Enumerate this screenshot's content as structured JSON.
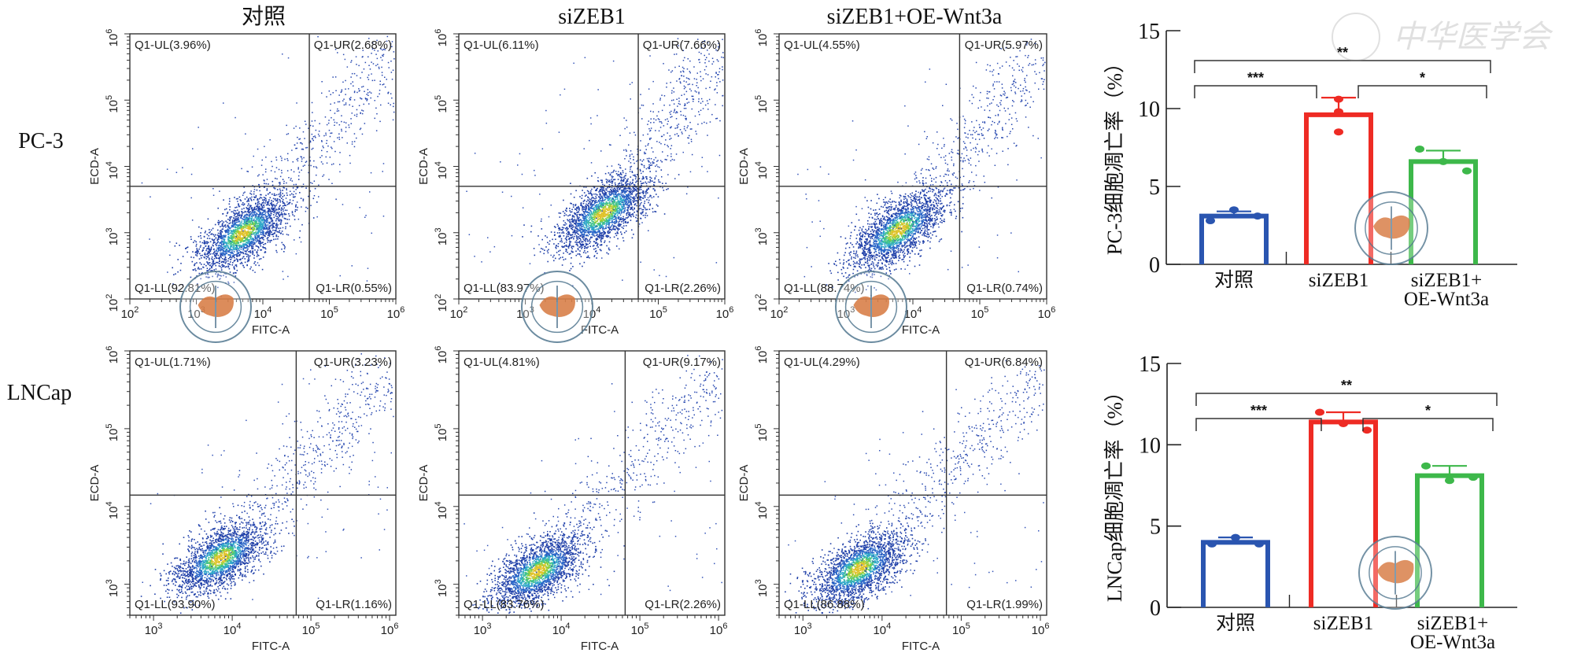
{
  "figure": {
    "row_labels": [
      "PC-3",
      "LNCap"
    ],
    "column_titles": [
      "对照",
      "siZEB1",
      "siZEB1+OE-Wnt3a"
    ],
    "watermark_text": "中华医学会"
  },
  "chart_data": [
    {
      "type": "scatter",
      "subtype": "flow-cytometry-quadrant",
      "row": "PC-3",
      "column": "对照",
      "xlabel": "FITC-A",
      "ylabel": "ECD-A",
      "xscale": "log",
      "yscale": "log",
      "xlim": [
        100,
        1000000
      ],
      "ylim": [
        100,
        1000000
      ],
      "xticks": [
        "10^2",
        "10^3",
        "10^4",
        "10^5",
        "10^6"
      ],
      "yticks": [
        "10^2",
        "10^3",
        "10^4",
        "10^5",
        "10^6"
      ],
      "gate": {
        "x": 50000,
        "y": 5000
      },
      "quadrants": {
        "UL": "Q1-UL(3.96%)",
        "UR": "Q1-UR(2.68%)",
        "LL": "Q1-LL(92.81%)",
        "LR": "Q1-LR(0.55%)"
      },
      "cluster_center": {
        "x": 5000,
        "y": 1000
      }
    },
    {
      "type": "scatter",
      "subtype": "flow-cytometry-quadrant",
      "row": "PC-3",
      "column": "siZEB1",
      "xlabel": "FITC-A",
      "ylabel": "ECD-A",
      "xscale": "log",
      "yscale": "log",
      "xlim": [
        100,
        1000000
      ],
      "ylim": [
        100,
        1000000
      ],
      "xticks": [
        "10^2",
        "10^3",
        "10^4",
        "10^5",
        "10^6"
      ],
      "yticks": [
        "10^2",
        "10^3",
        "10^4",
        "10^5",
        "10^6"
      ],
      "gate": {
        "x": 50000,
        "y": 5000
      },
      "quadrants": {
        "UL": "Q1-UL(6.11%)",
        "UR": "Q1-UR(7.66%)",
        "LL": "Q1-LL(83.97%)",
        "LR": "Q1-LR(2.26%)"
      },
      "cluster_center": {
        "x": 15000,
        "y": 2000
      }
    },
    {
      "type": "scatter",
      "subtype": "flow-cytometry-quadrant",
      "row": "PC-3",
      "column": "siZEB1+OE-Wnt3a",
      "xlabel": "FITC-A",
      "ylabel": "ECD-A",
      "xscale": "log",
      "yscale": "log",
      "xlim": [
        100,
        1000000
      ],
      "ylim": [
        100,
        1000000
      ],
      "xticks": [
        "10^2",
        "10^3",
        "10^4",
        "10^5",
        "10^6"
      ],
      "yticks": [
        "10^2",
        "10^3",
        "10^4",
        "10^5",
        "10^6"
      ],
      "gate": {
        "x": 50000,
        "y": 5000
      },
      "quadrants": {
        "UL": "Q1-UL(4.55%)",
        "UR": "Q1-UR(5.97%)",
        "LL": "Q1-LL(88.74%)",
        "LR": "Q1-LR(0.74%)"
      },
      "cluster_center": {
        "x": 6000,
        "y": 1100
      }
    },
    {
      "type": "scatter",
      "subtype": "flow-cytometry-quadrant",
      "row": "LNCap",
      "column": "对照",
      "xlabel": "FITC-A",
      "ylabel": "ECD-A",
      "xscale": "log",
      "yscale": "log",
      "xlim": [
        500,
        1200000
      ],
      "ylim": [
        400,
        1000000
      ],
      "xticks": [
        "10^3",
        "10^4",
        "10^5",
        "10^6"
      ],
      "yticks": [
        "10^3",
        "10^4",
        "10^5",
        "10^6"
      ],
      "gate": {
        "x": 65000,
        "y": 14000
      },
      "quadrants": {
        "UL": "Q1-UL(1.71%)",
        "UR": "Q1-UR(3.23%)",
        "LL": "Q1-LL(93.90%)",
        "LR": "Q1-LR(1.16%)"
      },
      "cluster_center": {
        "x": 7000,
        "y": 2200
      }
    },
    {
      "type": "scatter",
      "subtype": "flow-cytometry-quadrant",
      "row": "LNCap",
      "column": "siZEB1",
      "xlabel": "FITC-A",
      "ylabel": "ECD-A",
      "xscale": "log",
      "yscale": "log",
      "xlim": [
        500,
        1200000
      ],
      "ylim": [
        400,
        1000000
      ],
      "xticks": [
        "10^3",
        "10^4",
        "10^5",
        "10^6"
      ],
      "yticks": [
        "10^3",
        "10^4",
        "10^5",
        "10^6"
      ],
      "gate": {
        "x": 65000,
        "y": 14000
      },
      "quadrants": {
        "UL": "Q1-UL(4.81%)",
        "UR": "Q1-UR(9.17%)",
        "LL": "Q1-LL(83.76%)",
        "LR": "Q1-LR(2.26%)"
      },
      "cluster_center": {
        "x": 5000,
        "y": 1500
      }
    },
    {
      "type": "scatter",
      "subtype": "flow-cytometry-quadrant",
      "row": "LNCap",
      "column": "siZEB1+OE-Wnt3a",
      "xlabel": "FITC-A",
      "ylabel": "ECD-A",
      "xscale": "log",
      "yscale": "log",
      "xlim": [
        500,
        1200000
      ],
      "ylim": [
        400,
        1000000
      ],
      "xticks": [
        "10^3",
        "10^4",
        "10^5",
        "10^6"
      ],
      "yticks": [
        "10^3",
        "10^4",
        "10^5",
        "10^6"
      ],
      "gate": {
        "x": 65000,
        "y": 14000
      },
      "quadrants": {
        "UL": "Q1-UL(4.29%)",
        "UR": "Q1-UR(6.84%)",
        "LL": "Q1-LL(86.88%)",
        "LR": "Q1-LR(1.99%)"
      },
      "cluster_center": {
        "x": 5000,
        "y": 1600
      }
    },
    {
      "type": "bar",
      "title": "",
      "ylabel": "PC-3细胞凋亡率（%）",
      "xlabel": "",
      "categories": [
        "对照",
        "siZEB1",
        "siZEB1+\nOE-Wnt3a"
      ],
      "category_lines": [
        [
          "对照"
        ],
        [
          "siZEB1"
        ],
        [
          "siZEB1+",
          "OE-Wnt3a"
        ]
      ],
      "values": [
        3.1,
        9.6,
        6.6
      ],
      "error_upper": [
        3.4,
        10.7,
        7.3
      ],
      "points": [
        [
          2.8,
          3.5,
          3.1
        ],
        [
          10.6,
          9.8,
          8.5
        ],
        [
          7.4,
          6.6,
          6.0
        ]
      ],
      "colors": [
        "#2a55b0",
        "#ee2b24",
        "#3db84a"
      ],
      "ylim": [
        0,
        15
      ],
      "yticks": [
        0,
        5,
        10,
        15
      ],
      "significance": [
        {
          "from": 0,
          "to": 2,
          "label": "**",
          "level": 2
        },
        {
          "from": 0,
          "to": 1,
          "label": "***",
          "level": 1
        },
        {
          "from": 1,
          "to": 2,
          "label": "*",
          "level": 1
        }
      ]
    },
    {
      "type": "bar",
      "title": "",
      "ylabel": "LNCap细胞凋亡率（%）",
      "xlabel": "",
      "categories": [
        "对照",
        "siZEB1",
        "siZEB1+\nOE-Wnt3a"
      ],
      "category_lines": [
        [
          "对照"
        ],
        [
          "siZEB1"
        ],
        [
          "siZEB1+",
          "OE-Wnt3a"
        ]
      ],
      "values": [
        4.0,
        11.4,
        8.1
      ],
      "error_upper": [
        4.3,
        12.0,
        8.7
      ],
      "points": [
        [
          3.9,
          4.3,
          3.9
        ],
        [
          12.0,
          11.3,
          10.9
        ],
        [
          8.7,
          7.8,
          8.0
        ]
      ],
      "colors": [
        "#2a55b0",
        "#ee2b24",
        "#3db84a"
      ],
      "ylim": [
        0,
        15
      ],
      "yticks": [
        0,
        5,
        10,
        15
      ],
      "significance": [
        {
          "from": 0,
          "to": 2,
          "label": "**",
          "level": 2
        },
        {
          "from": 0,
          "to": 1,
          "label": "***",
          "level": 1
        },
        {
          "from": 1,
          "to": 2,
          "label": "*",
          "level": 1
        }
      ]
    }
  ]
}
